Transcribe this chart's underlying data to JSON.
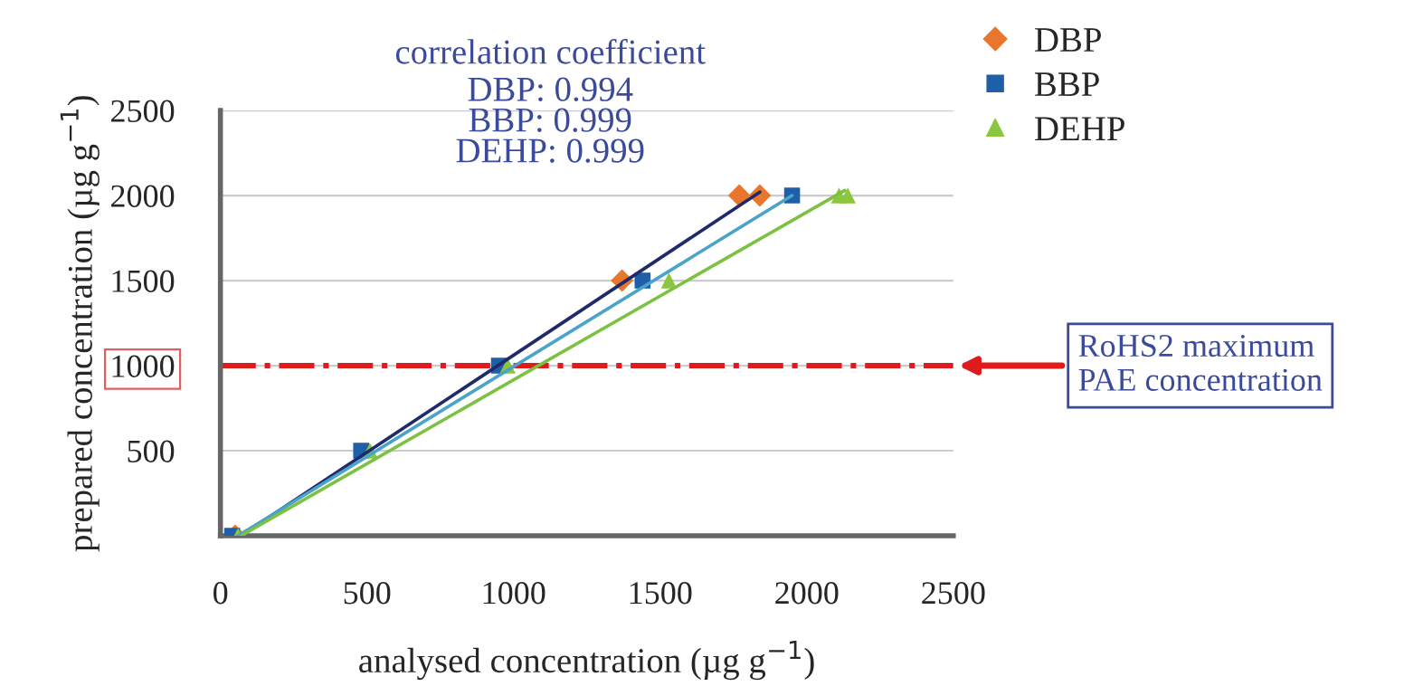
{
  "chart_data": {
    "type": "scatter",
    "xlabel": "analysed concentration (µg g$^{−1}$)",
    "ylabel": "prepared concentration (µg g$^{−1}$)",
    "xlim": [
      0,
      2500
    ],
    "ylim": [
      0,
      2500
    ],
    "xticks": [
      0,
      500,
      1000,
      1500,
      2000,
      2500
    ],
    "yticks": [
      {
        "value": 0,
        "label": null
      },
      500,
      1000,
      1500,
      2000,
      2500
    ],
    "grid": "y",
    "legend": "top right",
    "series": [
      {
        "name": "DBP",
        "color": "#e8762c",
        "marker": "diamond",
        "x": [
          50,
          490,
          940,
          1370,
          1770,
          1840
        ],
        "values": [
          0,
          null,
          null,
          1500,
          2000,
          2000
        ]
      },
      {
        "name": "BBP",
        "color": "#1f5fa8",
        "marker": "square",
        "x": [
          40,
          480,
          950,
          1440,
          1950
        ],
        "values": [
          0,
          500,
          1000,
          1500,
          2000
        ]
      },
      {
        "name": "DEHP",
        "color": "#8cc63f",
        "marker": "triangle",
        "x": [
          60,
          510,
          980,
          1530,
          2110,
          2140
        ],
        "values": [
          0,
          500,
          1000,
          1500,
          2000,
          2000
        ]
      },
      {
        "type": "line",
        "color": "#1f2a6b",
        "x": [
          70,
          1840
        ],
        "values": [
          0,
          2020
        ]
      },
      {
        "type": "line",
        "color": "#4aa3c8",
        "x": [
          60,
          1950
        ],
        "values": [
          0,
          2000
        ]
      },
      {
        "type": "line",
        "color": "#7cc242",
        "x": [
          70,
          2130
        ],
        "values": [
          0,
          2030
        ]
      }
    ],
    "ref_lines": [
      {
        "axis": "y",
        "value": 1000,
        "label": "RoHS2 maximum\nPAE concentration",
        "color": "#e01b1b",
        "line_style": "dashdot"
      }
    ],
    "annotations": [
      "correlation coefficient",
      "DBP: 0.994\nBBP: 0.999\nDEHP: 0.999"
    ]
  }
}
